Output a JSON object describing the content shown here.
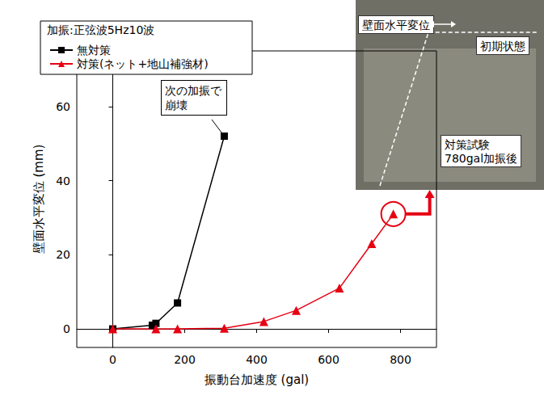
{
  "chart_data": {
    "type": "line",
    "title": "加振:正弦波5Hz10波",
    "x_label": "振動台加速度 (gal)",
    "y_label": "壁面水平変位 (mm)",
    "series": [
      {
        "name": "無対策",
        "color": "#000000",
        "marker": "square",
        "x": [
          0,
          110,
          120,
          180,
          310
        ],
        "values": [
          0,
          1,
          1.5,
          7,
          52
        ]
      },
      {
        "name": "対策(ネット+地山補強材)",
        "color": "#e60012",
        "marker": "triangle",
        "x": [
          0,
          120,
          180,
          310,
          420,
          510,
          630,
          720,
          780
        ],
        "values": [
          0,
          0,
          0,
          0.2,
          2,
          5,
          11,
          23,
          31
        ]
      }
    ],
    "xlim": [
      -100,
      900
    ],
    "xticks": [
      0,
      200,
      400,
      600,
      800
    ],
    "ylim": [
      -5,
      75
    ],
    "yticks": [
      0,
      20,
      40,
      60
    ],
    "grid": false,
    "legend": "upper left",
    "annotations": [
      "次の加振で崩壊"
    ],
    "photo_labels": [
      "壁面水平変位",
      "初期状態",
      "対策試験\n780gal加振後"
    ]
  }
}
